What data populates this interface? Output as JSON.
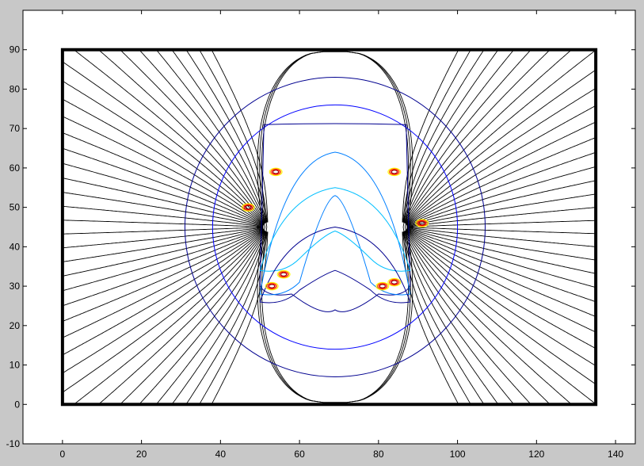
{
  "figure": {
    "background": "#c8c8c8",
    "axes_background": "#ffffff"
  },
  "chart_data": {
    "type": "contour",
    "title": "",
    "xlabel": "",
    "ylabel": "",
    "xlim": [
      -10,
      145
    ],
    "ylim": [
      -10,
      100
    ],
    "xticks": [
      0,
      20,
      40,
      60,
      80,
      100,
      120,
      140
    ],
    "yticks": [
      -10,
      0,
      10,
      20,
      30,
      40,
      50,
      60,
      70,
      80,
      90
    ],
    "xtick_labels": [
      "0",
      "20",
      "40",
      "60",
      "80",
      "100",
      "120",
      "140"
    ],
    "ytick_labels": [
      "-10",
      "0",
      "10",
      "20",
      "30",
      "40",
      "50",
      "60",
      "70",
      "80",
      "90"
    ],
    "grid": false,
    "boundary_box": {
      "x": [
        0,
        135
      ],
      "y": [
        0,
        90
      ],
      "color": "#000000"
    },
    "field_lines": {
      "color": "#000000",
      "description_free": true,
      "left_source": {
        "x": 52,
        "y": 45
      },
      "right_source": {
        "x": 86,
        "y": 45
      },
      "count_per_side": 40
    },
    "contour_levels": [
      {
        "level": 1,
        "color": "#00008f",
        "shape": "circle",
        "center": [
          69,
          45
        ],
        "radius": 38
      },
      {
        "level": 2,
        "color": "#0000ff",
        "shape": "circle",
        "center": [
          69,
          45
        ],
        "radius": 31
      },
      {
        "level": 3,
        "color": "#00008f",
        "shape": "outer_band",
        "y_top": 72,
        "y_bottom": 22
      },
      {
        "level": 4,
        "color": "#007fff",
        "shape": "arch",
        "y_top": 64,
        "y_bottom": 27
      },
      {
        "level": 5,
        "color": "#00bfff",
        "shape": "arch",
        "y_top": 55,
        "y_bottom": 33
      },
      {
        "level": 6,
        "color": "#00008f",
        "shape": "arch",
        "y_top": 45,
        "y_bottom": 25
      },
      {
        "level": 7,
        "color": "#ffff00",
        "shape": "spots"
      },
      {
        "level": 8,
        "color": "#ff7f00",
        "shape": "spots"
      },
      {
        "level": 9,
        "color": "#ff0000",
        "shape": "spots"
      },
      {
        "level": 10,
        "color": "#8f0000",
        "shape": "spots"
      }
    ],
    "separatrix": {
      "color": "#000000",
      "center": [
        69,
        45
      ],
      "x_halfwidth": 39,
      "y_top": 89.5,
      "y_bottom": 0.5
    }
  }
}
